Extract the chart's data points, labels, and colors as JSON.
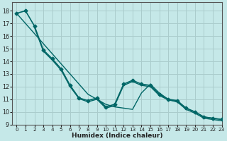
{
  "xlabel": "Humidex (Indice chaleur)",
  "background_color": "#c5e8e8",
  "grid_color": "#aacccc",
  "line_color": "#006666",
  "xlim": [
    -0.5,
    23
  ],
  "ylim": [
    9,
    18.7
  ],
  "yticks": [
    9,
    10,
    11,
    12,
    13,
    14,
    15,
    16,
    17,
    18
  ],
  "xticks": [
    0,
    1,
    2,
    3,
    4,
    5,
    6,
    7,
    8,
    9,
    10,
    11,
    12,
    13,
    14,
    15,
    16,
    17,
    18,
    19,
    20,
    21,
    22,
    23
  ],
  "series": [
    {
      "x": [
        0,
        1,
        2,
        3,
        4,
        5,
        6,
        7,
        8,
        9,
        10,
        11,
        12,
        13,
        14,
        15,
        16,
        17,
        18,
        19,
        20,
        21,
        22,
        23
      ],
      "y": [
        17.8,
        17.0,
        16.2,
        15.4,
        14.6,
        13.8,
        13.0,
        12.2,
        11.4,
        11.0,
        10.6,
        10.4,
        10.3,
        10.2,
        11.5,
        12.2,
        11.5,
        11.0,
        10.8,
        10.3,
        10.0,
        9.6,
        9.5,
        9.4
      ],
      "marker": null,
      "markersize": 0,
      "linewidth": 1.0
    },
    {
      "x": [
        0,
        1,
        2,
        3,
        4,
        5,
        6,
        7,
        8,
        9,
        10,
        11,
        12,
        13,
        14,
        15,
        16,
        17,
        18,
        19,
        20,
        21,
        22,
        23
      ],
      "y": [
        17.8,
        18.0,
        16.8,
        14.9,
        14.2,
        13.4,
        12.1,
        11.1,
        10.9,
        11.1,
        10.4,
        10.6,
        12.2,
        12.5,
        12.2,
        12.1,
        11.4,
        11.0,
        10.9,
        10.3,
        10.0,
        9.6,
        9.5,
        9.4
      ],
      "marker": "D",
      "markersize": 2.5,
      "linewidth": 1.2
    },
    {
      "x": [
        2,
        3,
        4,
        5,
        6,
        7,
        8,
        9,
        10,
        11,
        12,
        13,
        14,
        15,
        16,
        17,
        18,
        19,
        20,
        21,
        22,
        23
      ],
      "y": [
        16.7,
        14.8,
        14.1,
        13.3,
        12.0,
        11.05,
        10.8,
        11.0,
        10.3,
        10.5,
        12.1,
        12.4,
        12.1,
        12.0,
        11.3,
        10.95,
        10.8,
        10.2,
        9.9,
        9.5,
        9.4,
        9.3
      ],
      "marker": null,
      "markersize": 0,
      "linewidth": 1.0
    }
  ]
}
